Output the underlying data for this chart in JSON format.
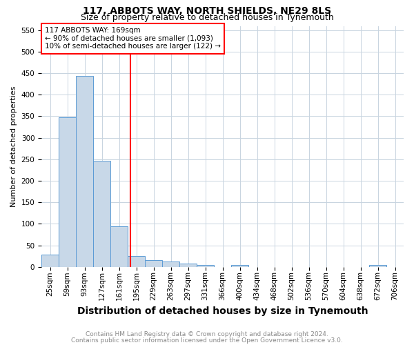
{
  "title1": "117, ABBOTS WAY, NORTH SHIELDS, NE29 8LS",
  "title2": "Size of property relative to detached houses in Tynemouth",
  "xlabel": "Distribution of detached houses by size in Tynemouth",
  "ylabel": "Number of detached properties",
  "footer1": "Contains HM Land Registry data © Crown copyright and database right 2024.",
  "footer2": "Contains public sector information licensed under the Open Government Licence v3.0.",
  "bin_labels": [
    "25sqm",
    "59sqm",
    "93sqm",
    "127sqm",
    "161sqm",
    "195sqm",
    "229sqm",
    "263sqm",
    "297sqm",
    "331sqm",
    "366sqm",
    "400sqm",
    "434sqm",
    "468sqm",
    "502sqm",
    "536sqm",
    "570sqm",
    "604sqm",
    "638sqm",
    "672sqm",
    "706sqm"
  ],
  "bar_values": [
    28,
    348,
    443,
    247,
    94,
    25,
    15,
    12,
    7,
    5,
    0,
    5,
    0,
    0,
    0,
    0,
    0,
    0,
    0,
    5,
    0
  ],
  "bar_color": "#c8d8e8",
  "bar_edge_color": "#5b9bd5",
  "red_line_x": 4.65,
  "red_line_color": "red",
  "annotation_text": "117 ABBOTS WAY: 169sqm\n← 90% of detached houses are smaller (1,093)\n10% of semi-detached houses are larger (122) →",
  "annotation_box_color": "white",
  "annotation_box_edge_color": "red",
  "ylim": [
    0,
    560
  ],
  "yticks": [
    0,
    50,
    100,
    150,
    200,
    250,
    300,
    350,
    400,
    450,
    500,
    550
  ],
  "grid_color": "#c8d4e0",
  "background_color": "white",
  "title1_fontsize": 10,
  "title2_fontsize": 9,
  "xlabel_fontsize": 10,
  "ylabel_fontsize": 8,
  "tick_fontsize": 7.5,
  "annotation_fontsize": 7.5,
  "footer_fontsize": 6.5
}
